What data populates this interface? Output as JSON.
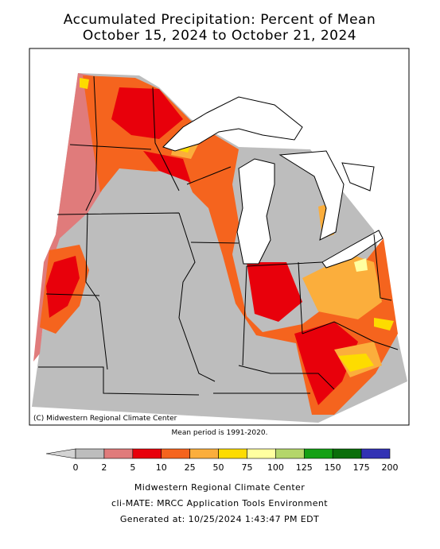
{
  "title": [
    "Accumulated Precipitation: Percent of Mean",
    "October 15, 2024 to October 21, 2024"
  ],
  "copyright": "(C) Midwestern Regional Climate Center",
  "mean_period": "Mean period is 1991-2020.",
  "legend": {
    "bins": [
      0,
      2,
      5,
      10,
      25,
      50,
      75,
      100,
      125,
      150,
      175,
      200
    ],
    "colors": [
      "#bdbdbd",
      "#e07b7b",
      "#e8000b",
      "#f5641e",
      "#fbae3c",
      "#fddc00",
      "#ffffa0",
      "#b4d66a",
      "#14a014",
      "#0a6e0a",
      "#3232b4"
    ],
    "below_color": "#d3d3d3"
  },
  "footer": [
    "Midwestern Regional Climate Center",
    "cli-MATE: MRCC Application Tools Environment",
    "Generated at: 10/25/2024 1:43:47 PM EDT"
  ]
}
